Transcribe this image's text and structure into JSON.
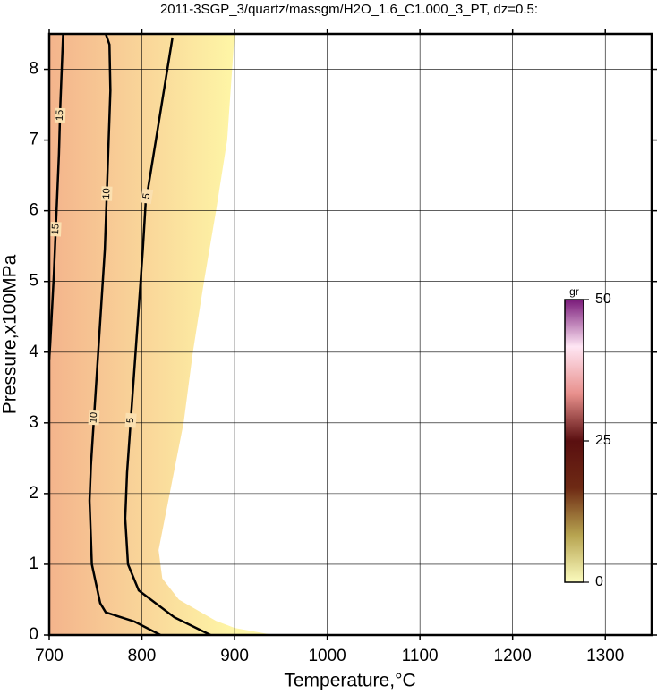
{
  "chart_data": {
    "type": "contour",
    "title": "2011-3SGP_3/quartz/massgm/H2O_1.6_C1.000_3_PT, dz=0.5:",
    "x_label": "Temperature,°C",
    "y_label": "Pressure,x100MPa",
    "xlim": [
      700,
      1350
    ],
    "ylim": [
      0,
      8.5
    ],
    "xticks": [
      700,
      800,
      900,
      1000,
      1100,
      1200,
      1300
    ],
    "yticks": [
      0,
      1,
      2,
      3,
      4,
      5,
      6,
      7,
      8
    ],
    "grid": true,
    "fill_colors": [
      "#f4b48c",
      "#fef6a6"
    ],
    "fill_boundary": {
      "x": [
        700,
        900,
        892,
        880,
        867,
        855,
        845,
        830,
        818,
        822,
        840,
        880,
        900,
        942,
        700
      ],
      "y": [
        8.5,
        8.5,
        7,
        6,
        5,
        4,
        3,
        2,
        1.2,
        0.8,
        0.5,
        0.2,
        0.1,
        0,
        0
      ]
    },
    "contours": [
      {
        "level": 15,
        "x": [
          715,
          712,
          710.5,
          705,
          701,
          700
        ],
        "y": [
          8.5,
          7.5,
          6.8,
          5.1,
          4.1,
          3.9
        ]
      },
      {
        "level": 10,
        "x": [
          761,
          765,
          766,
          760,
          745,
          743.5,
          746,
          755,
          761,
          792,
          820
        ],
        "y": [
          8.5,
          8.35,
          7.7,
          5.45,
          2.4,
          1.9,
          1.0,
          0.45,
          0.32,
          0.19,
          0
        ]
      },
      {
        "level": 5,
        "x": [
          833,
          804,
          801,
          784,
          782,
          785,
          796.6,
          835,
          874
        ],
        "y": [
          8.45,
          6.1,
          5.45,
          2.3,
          1.65,
          1.0,
          0.63,
          0.25,
          0
        ]
      }
    ],
    "colorbar": {
      "label": "gr",
      "lim": [
        0,
        50
      ],
      "ticks": [
        0,
        25,
        50
      ],
      "colors": [
        "#fbfbbe",
        "#b7a450",
        "#6e2a14",
        "#5a0f10",
        "#e8908c",
        "#ffe6f4",
        "#7a1a7a"
      ]
    }
  }
}
